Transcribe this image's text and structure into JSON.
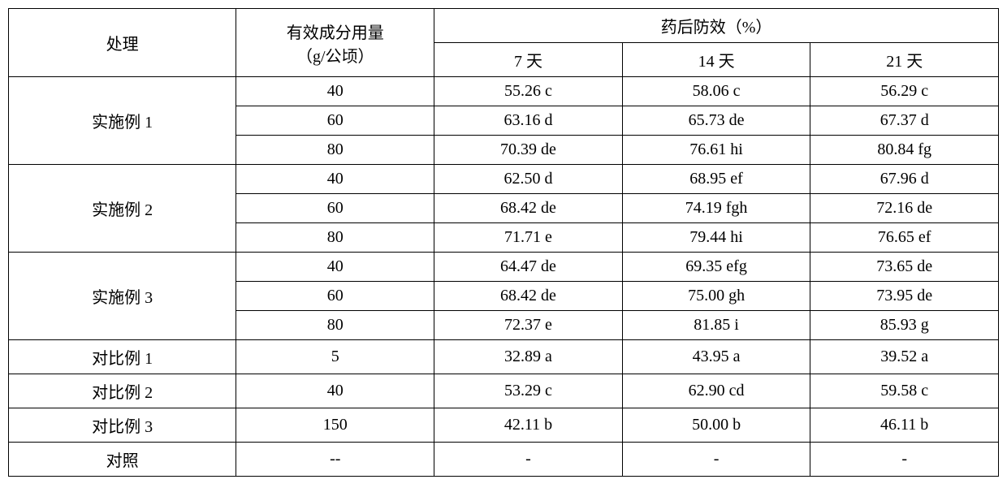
{
  "table": {
    "headers": {
      "treatment": "处理",
      "dosage_line1": "有效成分用量",
      "dosage_line2": "（g/公顷）",
      "efficacy": "药后防效（%）",
      "day7": "7 天",
      "day14": "14 天",
      "day21": "21 天"
    },
    "groups": [
      {
        "treatment": "实施例 1",
        "rows": [
          {
            "dosage": "40",
            "d7": "55.26 c",
            "d14": "58.06 c",
            "d21": "56.29 c"
          },
          {
            "dosage": "60",
            "d7": "63.16 d",
            "d14": "65.73 de",
            "d21": "67.37 d"
          },
          {
            "dosage": "80",
            "d7": "70.39 de",
            "d14": "76.61 hi",
            "d21": "80.84 fg"
          }
        ]
      },
      {
        "treatment": "实施例 2",
        "rows": [
          {
            "dosage": "40",
            "d7": "62.50 d",
            "d14": "68.95 ef",
            "d21": "67.96 d"
          },
          {
            "dosage": "60",
            "d7": "68.42 de",
            "d14": "74.19 fgh",
            "d21": "72.16 de"
          },
          {
            "dosage": "80",
            "d7": "71.71 e",
            "d14": "79.44 hi",
            "d21": "76.65 ef"
          }
        ]
      },
      {
        "treatment": "实施例 3",
        "rows": [
          {
            "dosage": "40",
            "d7": "64.47 de",
            "d14": "69.35 efg",
            "d21": "73.65 de"
          },
          {
            "dosage": "60",
            "d7": "68.42 de",
            "d14": "75.00 gh",
            "d21": "73.95 de"
          },
          {
            "dosage": "80",
            "d7": "72.37 e",
            "d14": "81.85 i",
            "d21": "85.93 g"
          }
        ]
      }
    ],
    "single_rows": [
      {
        "treatment": "对比例 1",
        "dosage": "5",
        "d7": "32.89 a",
        "d14": "43.95 a",
        "d21": "39.52 a"
      },
      {
        "treatment": "对比例 2",
        "dosage": "40",
        "d7": "53.29 c",
        "d14": "62.90 cd",
        "d21": "59.58 c"
      },
      {
        "treatment": "对比例 3",
        "dosage": "150",
        "d7": "42.11 b",
        "d14": "50.00 b",
        "d21": "46.11 b"
      },
      {
        "treatment": "对照",
        "dosage": "--",
        "d7": "-",
        "d14": "-",
        "d21": "-"
      }
    ]
  }
}
